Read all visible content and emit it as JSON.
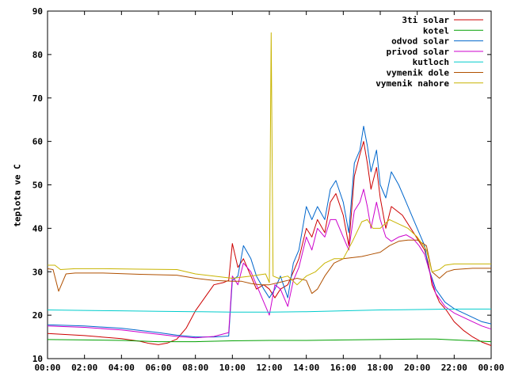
{
  "chart_data": {
    "type": "line",
    "title": "",
    "xlabel": "",
    "ylabel": "teplota ve C",
    "xlim": [
      0,
      24
    ],
    "ylim": [
      10,
      90
    ],
    "x_ticks": [
      {
        "value": 0,
        "label": "00:00"
      },
      {
        "value": 2,
        "label": "02:00"
      },
      {
        "value": 4,
        "label": "04:00"
      },
      {
        "value": 6,
        "label": "06:00"
      },
      {
        "value": 8,
        "label": "08:00"
      },
      {
        "value": 10,
        "label": "10:00"
      },
      {
        "value": 12,
        "label": "12:00"
      },
      {
        "value": 14,
        "label": "14:00"
      },
      {
        "value": 16,
        "label": "16:00"
      },
      {
        "value": 18,
        "label": "18:00"
      },
      {
        "value": 20,
        "label": "20:00"
      },
      {
        "value": 22,
        "label": "22:00"
      },
      {
        "value": 24,
        "label": "00:00"
      }
    ],
    "y_ticks": [
      {
        "value": 10,
        "label": "10"
      },
      {
        "value": 20,
        "label": "20"
      },
      {
        "value": 30,
        "label": "30"
      },
      {
        "value": 40,
        "label": "40"
      },
      {
        "value": 50,
        "label": "50"
      },
      {
        "value": 60,
        "label": "60"
      },
      {
        "value": 70,
        "label": "70"
      },
      {
        "value": 80,
        "label": "80"
      },
      {
        "value": 90,
        "label": "90"
      }
    ],
    "grid": false,
    "legend_position": "top-right",
    "series": [
      {
        "name": "3ti solar",
        "color": "#cc0000",
        "points": [
          [
            0,
            15.8
          ],
          [
            2,
            15.3
          ],
          [
            4,
            14.6
          ],
          [
            5,
            14.0
          ],
          [
            5.5,
            13.5
          ],
          [
            6,
            13.2
          ],
          [
            6.5,
            13.6
          ],
          [
            7,
            14.5
          ],
          [
            7.5,
            17
          ],
          [
            8,
            21
          ],
          [
            8.5,
            24
          ],
          [
            9,
            27
          ],
          [
            9.5,
            27.5
          ],
          [
            9.8,
            28
          ],
          [
            10,
            36.5
          ],
          [
            10.3,
            31
          ],
          [
            10.6,
            33
          ],
          [
            11,
            29
          ],
          [
            11.3,
            26
          ],
          [
            11.7,
            27
          ],
          [
            12,
            26
          ],
          [
            12.3,
            24
          ],
          [
            12.6,
            26
          ],
          [
            13,
            27
          ],
          [
            13.3,
            30
          ],
          [
            13.6,
            33
          ],
          [
            14,
            40
          ],
          [
            14.3,
            38
          ],
          [
            14.6,
            42
          ],
          [
            15,
            39
          ],
          [
            15.3,
            46
          ],
          [
            15.6,
            48
          ],
          [
            16,
            43
          ],
          [
            16.3,
            36
          ],
          [
            16.6,
            52
          ],
          [
            16.9,
            57
          ],
          [
            17.1,
            60
          ],
          [
            17.3,
            55
          ],
          [
            17.5,
            49
          ],
          [
            17.8,
            54
          ],
          [
            18.0,
            47
          ],
          [
            18.3,
            40
          ],
          [
            18.6,
            45
          ],
          [
            18.9,
            44
          ],
          [
            19.2,
            43
          ],
          [
            19.5,
            41
          ],
          [
            19.8,
            39
          ],
          [
            20.1,
            37
          ],
          [
            20.4,
            35
          ],
          [
            20.6,
            32
          ],
          [
            20.8,
            27
          ],
          [
            21.2,
            23
          ],
          [
            21.6,
            21
          ],
          [
            22,
            18.5
          ],
          [
            22.5,
            16.5
          ],
          [
            23,
            15
          ],
          [
            23.5,
            13.8
          ],
          [
            24,
            13
          ]
        ]
      },
      {
        "name": "kotel",
        "color": "#00a000",
        "points": [
          [
            0,
            14.4
          ],
          [
            2,
            14.3
          ],
          [
            4,
            14.2
          ],
          [
            6,
            13.9
          ],
          [
            8,
            13.9
          ],
          [
            10,
            14.1
          ],
          [
            12,
            14.2
          ],
          [
            14,
            14.2
          ],
          [
            16,
            14.3
          ],
          [
            18,
            14.4
          ],
          [
            20,
            14.5
          ],
          [
            21,
            14.5
          ],
          [
            22,
            14.3
          ],
          [
            23,
            14.1
          ],
          [
            24,
            13.9
          ]
        ]
      },
      {
        "name": "odvod solar",
        "color": "#0066cc",
        "points": [
          [
            0,
            17.8
          ],
          [
            2,
            17.5
          ],
          [
            4,
            17.0
          ],
          [
            6,
            16.0
          ],
          [
            7,
            15.4
          ],
          [
            8,
            15.0
          ],
          [
            9,
            15.0
          ],
          [
            9.8,
            15.2
          ],
          [
            10,
            28
          ],
          [
            10.3,
            29
          ],
          [
            10.6,
            36
          ],
          [
            11,
            33
          ],
          [
            11.3,
            29
          ],
          [
            11.7,
            26
          ],
          [
            12,
            24
          ],
          [
            12.3,
            26
          ],
          [
            12.6,
            29
          ],
          [
            13,
            24
          ],
          [
            13.3,
            32
          ],
          [
            13.6,
            35
          ],
          [
            14,
            45
          ],
          [
            14.3,
            42
          ],
          [
            14.6,
            45
          ],
          [
            15,
            42
          ],
          [
            15.3,
            49
          ],
          [
            15.6,
            51
          ],
          [
            16,
            46
          ],
          [
            16.3,
            39
          ],
          [
            16.6,
            55
          ],
          [
            16.9,
            58
          ],
          [
            17.1,
            63.5
          ],
          [
            17.3,
            59
          ],
          [
            17.5,
            53
          ],
          [
            17.8,
            58
          ],
          [
            18.0,
            50
          ],
          [
            18.3,
            47
          ],
          [
            18.6,
            53
          ],
          [
            19,
            50
          ],
          [
            19.4,
            46
          ],
          [
            19.8,
            42
          ],
          [
            20.1,
            39
          ],
          [
            20.4,
            36
          ],
          [
            20.6,
            31
          ],
          [
            21,
            26
          ],
          [
            21.5,
            23
          ],
          [
            22,
            21.5
          ],
          [
            22.5,
            20.5
          ],
          [
            23,
            19.5
          ],
          [
            23.5,
            18.5
          ],
          [
            24,
            18
          ]
        ]
      },
      {
        "name": "privod solar",
        "color": "#cc00cc",
        "points": [
          [
            0,
            17.5
          ],
          [
            2,
            17.2
          ],
          [
            4,
            16.6
          ],
          [
            6,
            15.6
          ],
          [
            7,
            15.1
          ],
          [
            8,
            14.8
          ],
          [
            9,
            15.1
          ],
          [
            9.8,
            16
          ],
          [
            10,
            29
          ],
          [
            10.3,
            27
          ],
          [
            10.6,
            32
          ],
          [
            11,
            30
          ],
          [
            11.3,
            27
          ],
          [
            11.7,
            23
          ],
          [
            12,
            20
          ],
          [
            12.3,
            27
          ],
          [
            12.6,
            26
          ],
          [
            13,
            22
          ],
          [
            13.3,
            28
          ],
          [
            13.6,
            31
          ],
          [
            14,
            38
          ],
          [
            14.3,
            35
          ],
          [
            14.6,
            40
          ],
          [
            15,
            38
          ],
          [
            15.3,
            42
          ],
          [
            15.6,
            42
          ],
          [
            16,
            38
          ],
          [
            16.3,
            35
          ],
          [
            16.6,
            44
          ],
          [
            16.9,
            46
          ],
          [
            17.1,
            49
          ],
          [
            17.3,
            45
          ],
          [
            17.5,
            40
          ],
          [
            17.8,
            46
          ],
          [
            18.0,
            42
          ],
          [
            18.3,
            38
          ],
          [
            18.6,
            37
          ],
          [
            19,
            38
          ],
          [
            19.4,
            38.5
          ],
          [
            19.8,
            37.5
          ],
          [
            20.1,
            36
          ],
          [
            20.4,
            34
          ],
          [
            20.6,
            31
          ],
          [
            21,
            25
          ],
          [
            21.5,
            22
          ],
          [
            22,
            20.5
          ],
          [
            22.5,
            19.5
          ],
          [
            23,
            18.5
          ],
          [
            23.5,
            17.5
          ],
          [
            24,
            16.8
          ]
        ]
      },
      {
        "name": "kutloch",
        "color": "#00cccc",
        "points": [
          [
            0,
            21.2
          ],
          [
            2,
            21.1
          ],
          [
            4,
            21.0
          ],
          [
            6,
            20.9
          ],
          [
            8,
            20.8
          ],
          [
            10,
            20.7
          ],
          [
            12,
            20.7
          ],
          [
            14,
            20.8
          ],
          [
            16,
            21.0
          ],
          [
            18,
            21.2
          ],
          [
            20,
            21.3
          ],
          [
            22,
            21.4
          ],
          [
            24,
            21.4
          ]
        ]
      },
      {
        "name": "vymenik dole",
        "color": "#b05000",
        "points": [
          [
            0,
            30.7
          ],
          [
            0.3,
            30.5
          ],
          [
            0.6,
            25.5
          ],
          [
            1,
            29.5
          ],
          [
            1.5,
            29.7
          ],
          [
            3,
            29.7
          ],
          [
            5,
            29.4
          ],
          [
            7,
            29.2
          ],
          [
            8,
            28.5
          ],
          [
            9,
            28.0
          ],
          [
            10,
            27.8
          ],
          [
            10.5,
            27.8
          ],
          [
            11,
            27.3
          ],
          [
            11.5,
            27.0
          ],
          [
            12,
            27.0
          ],
          [
            12.5,
            27.5
          ],
          [
            13,
            28.0
          ],
          [
            13.5,
            28.5
          ],
          [
            14,
            28.0
          ],
          [
            14.3,
            25
          ],
          [
            14.6,
            26
          ],
          [
            15,
            29
          ],
          [
            15.5,
            32
          ],
          [
            16,
            33
          ],
          [
            17,
            33.5
          ],
          [
            17.5,
            34
          ],
          [
            18,
            34.5
          ],
          [
            18.5,
            36
          ],
          [
            19,
            37
          ],
          [
            19.5,
            37.3
          ],
          [
            20,
            37.3
          ],
          [
            20.5,
            36
          ],
          [
            20.8,
            30
          ],
          [
            21.2,
            28.5
          ],
          [
            21.6,
            30
          ],
          [
            22,
            30.5
          ],
          [
            23,
            30.8
          ],
          [
            24,
            30.8
          ]
        ]
      },
      {
        "name": "vymenik nahore",
        "color": "#c8b400",
        "points": [
          [
            0,
            31.5
          ],
          [
            0.4,
            31.5
          ],
          [
            0.7,
            30.5
          ],
          [
            1.5,
            30.7
          ],
          [
            3,
            30.7
          ],
          [
            5,
            30.6
          ],
          [
            7,
            30.5
          ],
          [
            8,
            29.5
          ],
          [
            9,
            29.0
          ],
          [
            10,
            28.5
          ],
          [
            11,
            29.0
          ],
          [
            11.8,
            29.5
          ],
          [
            12.0,
            27.5
          ],
          [
            12.1,
            85
          ],
          [
            12.2,
            29
          ],
          [
            12.5,
            28.5
          ],
          [
            13,
            29
          ],
          [
            13.5,
            27
          ],
          [
            14,
            29
          ],
          [
            14.5,
            30
          ],
          [
            15,
            32
          ],
          [
            15.5,
            33
          ],
          [
            16,
            33
          ],
          [
            16.5,
            37
          ],
          [
            17,
            41.5
          ],
          [
            17.3,
            42
          ],
          [
            17.6,
            40
          ],
          [
            18,
            40
          ],
          [
            18.5,
            42
          ],
          [
            19,
            41
          ],
          [
            19.5,
            40
          ],
          [
            20,
            38
          ],
          [
            20.5,
            35
          ],
          [
            20.8,
            30
          ],
          [
            21.2,
            30.5
          ],
          [
            21.5,
            31.5
          ],
          [
            22,
            31.8
          ],
          [
            23,
            31.8
          ],
          [
            24,
            31.8
          ]
        ]
      }
    ]
  }
}
